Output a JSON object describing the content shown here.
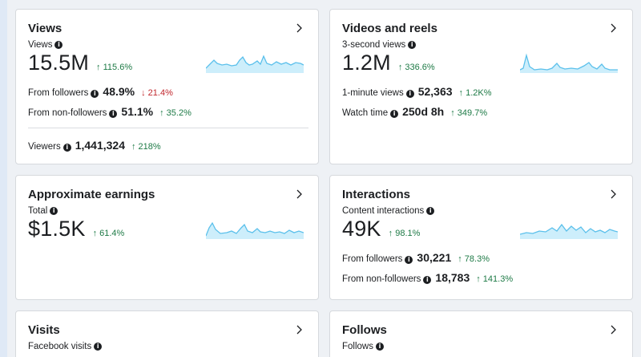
{
  "colors": {
    "accent_up": "#1e7a46",
    "accent_down": "#c1272d",
    "sparkline": "#5bc0eb",
    "sparkfill": "#cdeefb"
  },
  "icons": {
    "info": "info-icon",
    "chevron": "chevron-right-icon"
  },
  "views": {
    "title": "Views",
    "label": "Views",
    "value": "15.5M",
    "delta": "↑ 115.6%",
    "followers_label": "From followers",
    "followers_value": "48.9%",
    "followers_delta": "↓ 21.4%",
    "nonfollowers_label": "From non-followers",
    "nonfollowers_value": "51.1%",
    "nonfollowers_delta": "↑ 35.2%",
    "viewers_label": "Viewers",
    "viewers_value": "1,441,324",
    "viewers_delta": "↑ 218%"
  },
  "videos": {
    "title": "Videos and reels",
    "label": "3-second views",
    "value": "1.2M",
    "delta": "↑ 336.6%",
    "minute_label": "1-minute views",
    "minute_value": "52,363",
    "minute_delta": "↑ 1.2K%",
    "watch_label": "Watch time",
    "watch_value": "250d 8h",
    "watch_delta": "↑ 349.7%"
  },
  "earnings": {
    "title": "Approximate earnings",
    "label": "Total",
    "value": "$1.5K",
    "delta": "↑ 61.4%"
  },
  "interactions": {
    "title": "Interactions",
    "label": "Content interactions",
    "value": "49K",
    "delta": "↑ 98.1%",
    "followers_label": "From followers",
    "followers_value": "30,221",
    "followers_delta": "↑ 78.3%",
    "nonfollowers_label": "From non-followers",
    "nonfollowers_value": "18,783",
    "nonfollowers_delta": "↑ 141.3%"
  },
  "visits": {
    "title": "Visits",
    "label": "Facebook visits"
  },
  "follows": {
    "title": "Follows",
    "label": "Follows"
  }
}
